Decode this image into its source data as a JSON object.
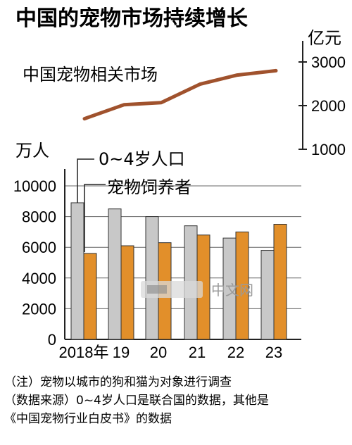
{
  "title": "中国的宠物市场持续增长",
  "chart_data": [
    {
      "type": "line",
      "series_label": "中国宠物相关市场",
      "unit": "亿元",
      "x": [
        "2018",
        "19",
        "20",
        "21",
        "22",
        "23"
      ],
      "values": [
        1700,
        2020,
        2070,
        2490,
        2700,
        2800
      ],
      "ylim": [
        1000,
        3000
      ],
      "yticks": [
        "1000",
        "2000",
        "3000"
      ]
    },
    {
      "type": "bar",
      "unit": "万人",
      "categories": [
        "2018年",
        "19",
        "20",
        "21",
        "22",
        "23"
      ],
      "series": [
        {
          "name": "0~4岁人口",
          "color": "#c8c8c8",
          "values": [
            8900,
            8500,
            8000,
            7400,
            6600,
            5800
          ]
        },
        {
          "name": "宠物饲养者",
          "color": "#e28f2a",
          "values": [
            5600,
            6100,
            6300,
            6800,
            7000,
            7500
          ]
        }
      ],
      "ylim": [
        0,
        10000
      ],
      "yticks": [
        "0",
        "2000",
        "4000",
        "6000",
        "8000",
        "10000"
      ]
    }
  ],
  "watermark": "中文网",
  "notes": [
    "（注）宠物以城市的狗和猫为对象进行调查",
    "（数据来源）0~4岁人口是联合国的数据，其他是",
    "《中国宠物行业白皮书》的数据"
  ]
}
